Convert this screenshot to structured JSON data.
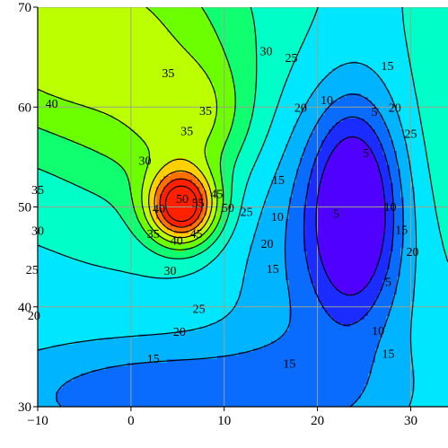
{
  "chart_data": {
    "type": "contour",
    "title": "",
    "xlabel": "",
    "ylabel": "",
    "xlim": [
      -10,
      34
    ],
    "ylim": [
      30,
      70
    ],
    "x_ticks": [
      -10,
      0,
      10,
      20,
      30
    ],
    "y_ticks": [
      30,
      40,
      50,
      60,
      70
    ],
    "x_tick_labels": [
      "−10",
      "0",
      "10",
      "20",
      "30"
    ],
    "y_tick_labels": [
      "30",
      "40",
      "50",
      "60",
      "70"
    ],
    "grid": true,
    "levels": [
      5,
      10,
      15,
      20,
      25,
      30,
      35,
      40,
      45,
      50,
      55,
      60
    ],
    "colormap": [
      "#5000ff",
      "#1a2cff",
      "#0a6cff",
      "#00b4ff",
      "#00e6ff",
      "#00ffc8",
      "#10ff70",
      "#6cff00",
      "#bcff00",
      "#ffd000",
      "#ff7000",
      "#ff2000"
    ],
    "field": {
      "background": 24,
      "features": [
        {
          "kind": "peak",
          "x": 5.5,
          "y": 50,
          "sx": 2.6,
          "sy": 2.6,
          "amp": 38
        },
        {
          "kind": "ridge",
          "x": -6,
          "y": 67,
          "sx": 13,
          "sy": 8,
          "amp": 20
        },
        {
          "kind": "ridge",
          "x": 7,
          "y": 59,
          "sx": 4,
          "sy": 4,
          "amp": 9
        },
        {
          "kind": "ridge",
          "x": 3,
          "y": 55,
          "sx": 7,
          "sy": 6,
          "amp": 6
        },
        {
          "kind": "valley",
          "x": 24,
          "y": 50,
          "sx": 3.2,
          "sy": 7,
          "amp": 23
        },
        {
          "kind": "valley",
          "x": 21,
          "y": 46,
          "sx": 7,
          "sy": 12,
          "amp": 10
        },
        {
          "kind": "valley",
          "x": 4,
          "y": 31,
          "sx": 14,
          "sy": 4,
          "amp": 13
        },
        {
          "kind": "ridge",
          "x": 34,
          "y": 57,
          "sx": 4,
          "sy": 12,
          "amp": 5
        }
      ]
    },
    "contour_labels": [
      {
        "text": "35",
        "x": 4,
        "y": 63.3
      },
      {
        "text": "40",
        "x": -8.5,
        "y": 60.2
      },
      {
        "text": "35",
        "x": 8,
        "y": 59.5
      },
      {
        "text": "35",
        "x": 6,
        "y": 57.5
      },
      {
        "text": "30",
        "x": 14.5,
        "y": 65.5
      },
      {
        "text": "25",
        "x": 17.2,
        "y": 64.8
      },
      {
        "text": "20",
        "x": 18.2,
        "y": 59.8
      },
      {
        "text": "10",
        "x": 21,
        "y": 60.6
      },
      {
        "text": "15",
        "x": 27.5,
        "y": 64
      },
      {
        "text": "20",
        "x": 28.3,
        "y": 59.8
      },
      {
        "text": "5",
        "x": 26.1,
        "y": 59.4
      },
      {
        "text": "25",
        "x": 30,
        "y": 57.2
      },
      {
        "text": "5",
        "x": 25.2,
        "y": 55.3
      },
      {
        "text": "30",
        "x": 1.5,
        "y": 54.5
      },
      {
        "text": "35",
        "x": -10,
        "y": 51.6
      },
      {
        "text": "15",
        "x": 15.8,
        "y": 52.6
      },
      {
        "text": "10",
        "x": 15.7,
        "y": 48.9
      },
      {
        "text": "5",
        "x": 22,
        "y": 49.2
      },
      {
        "text": "10",
        "x": 27.8,
        "y": 49.9
      },
      {
        "text": "15",
        "x": 29,
        "y": 47.6
      },
      {
        "text": "20",
        "x": 30.2,
        "y": 45.4
      },
      {
        "text": "5",
        "x": 27.6,
        "y": 42.4
      },
      {
        "text": "30",
        "x": -10,
        "y": 47.5
      },
      {
        "text": "50",
        "x": 5.5,
        "y": 50.7
      },
      {
        "text": "40",
        "x": 3,
        "y": 49.7
      },
      {
        "text": "55",
        "x": 7.2,
        "y": 50.3
      },
      {
        "text": "45",
        "x": 9.2,
        "y": 51.2
      },
      {
        "text": "50",
        "x": 10.4,
        "y": 49.8
      },
      {
        "text": "25",
        "x": 12.4,
        "y": 49.4
      },
      {
        "text": "45",
        "x": 7,
        "y": 47.2
      },
      {
        "text": "40",
        "x": 4.9,
        "y": 46.5
      },
      {
        "text": "35",
        "x": 2.4,
        "y": 47.2
      },
      {
        "text": "20",
        "x": 14.6,
        "y": 46.2
      },
      {
        "text": "15",
        "x": 15.2,
        "y": 43.7
      },
      {
        "text": "30",
        "x": 4.2,
        "y": 43.5
      },
      {
        "text": "25",
        "x": -10.6,
        "y": 43.6
      },
      {
        "text": "25",
        "x": 7.3,
        "y": 39.7
      },
      {
        "text": "20",
        "x": -10.4,
        "y": 39
      },
      {
        "text": "20",
        "x": 5.2,
        "y": 37.4
      },
      {
        "text": "15",
        "x": 2.4,
        "y": 34.7
      },
      {
        "text": "15",
        "x": 17,
        "y": 34.2
      },
      {
        "text": "10",
        "x": 26.5,
        "y": 37.5
      },
      {
        "text": "15",
        "x": 27.6,
        "y": 35.2
      }
    ]
  }
}
